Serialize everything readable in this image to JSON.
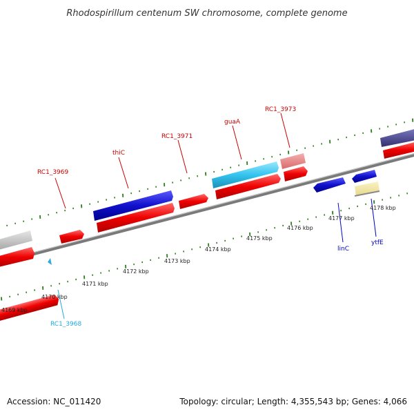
{
  "title": "Rhodospirillum centenum SW chromosome, complete genome",
  "footer": {
    "accession": "Accession: NC_011420",
    "summary": "Topology: circular; Length: 4,355,543 bp; Genes: 4,066"
  },
  "colors": {
    "backbone": "#7a7a7a",
    "tick": "#2e7d1b",
    "forward_gene": "#ee0000",
    "reverse_gene": "#1010cc",
    "label_red": "#cc0000",
    "label_blue": "#0000cc",
    "label_cyan": "#22aadd"
  },
  "scale_labels": [
    "4169 kbp",
    "4170 kbp",
    "4171 kbp",
    "4172 kbp",
    "4173 kbp",
    "4174 kbp",
    "4175 kbp",
    "4176 kbp",
    "4177 kbp",
    "4178 kbp"
  ],
  "gene_labels": [
    {
      "text": "RC1_3969",
      "color": "#cc0000"
    },
    {
      "text": "thiC",
      "color": "#cc0000"
    },
    {
      "text": "RC1_3971",
      "color": "#cc0000"
    },
    {
      "text": "guaA",
      "color": "#cc0000"
    },
    {
      "text": "RC1_3973",
      "color": "#cc0000"
    },
    {
      "text": "linC",
      "color": "#0000cc"
    },
    {
      "text": "ytfE",
      "color": "#0000cc"
    },
    {
      "text": "RC1_3968",
      "color": "#22aadd"
    }
  ]
}
